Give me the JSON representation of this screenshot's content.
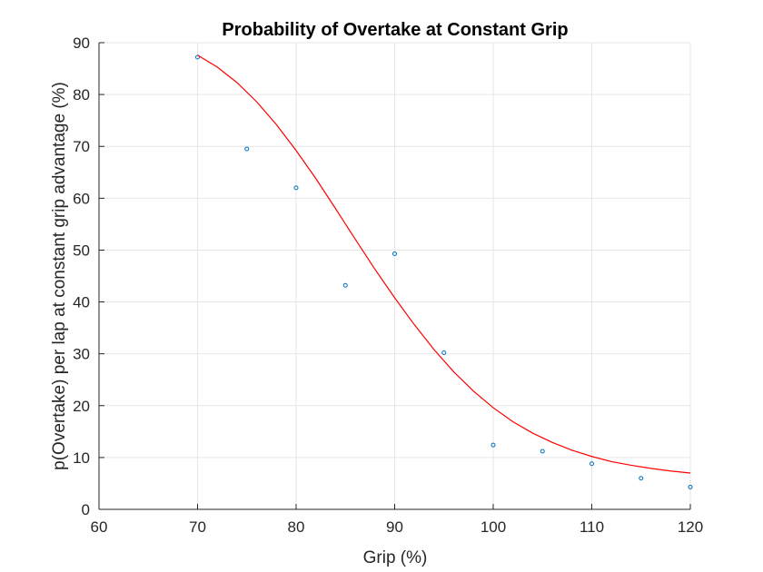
{
  "chart_data": {
    "type": "scatter",
    "title": "Probability of Overtake at Constant Grip",
    "xlabel": "Grip (%)",
    "ylabel": "p(Overtake) per lap at constant grip advantage (%)",
    "xlim": [
      60,
      120
    ],
    "ylim": [
      0,
      90
    ],
    "xticks": [
      60,
      70,
      80,
      90,
      100,
      110,
      120
    ],
    "yticks": [
      0,
      10,
      20,
      30,
      40,
      50,
      60,
      70,
      80,
      90
    ],
    "grid": true,
    "series": [
      {
        "kind": "scatter",
        "marker": "circle",
        "color": "#0072BD",
        "x": [
          70,
          75,
          80,
          85,
          90,
          95,
          100,
          105,
          110,
          115,
          120
        ],
        "y": [
          87.2,
          69.5,
          62.0,
          43.2,
          49.3,
          30.2,
          12.4,
          11.2,
          8.8,
          6.0,
          4.3
        ]
      },
      {
        "kind": "line",
        "color": "#ff0000",
        "x": [
          70,
          72,
          74,
          76,
          78,
          80,
          82,
          84,
          86,
          88,
          90,
          92,
          94,
          96,
          98,
          100,
          102,
          104,
          106,
          108,
          110,
          112,
          114,
          116,
          118,
          120
        ],
        "y": [
          87.6,
          85.3,
          82.3,
          78.6,
          74.2,
          69.2,
          63.8,
          58.0,
          52.1,
          46.3,
          40.8,
          35.6,
          30.8,
          26.5,
          22.8,
          19.6,
          16.9,
          14.7,
          12.9,
          11.4,
          10.2,
          9.2,
          8.5,
          7.9,
          7.4,
          7.0
        ]
      }
    ]
  }
}
